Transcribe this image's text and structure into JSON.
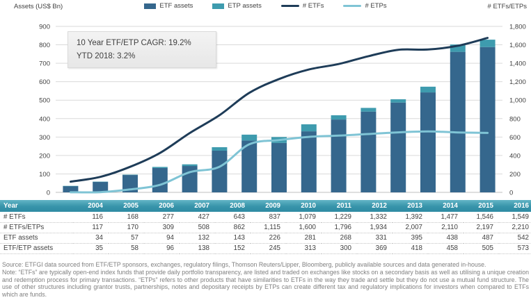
{
  "header": {
    "left_axis_title": "Assets (US$ Bn)",
    "right_axis_title": "# ETFs/ETPs",
    "legend": [
      {
        "label": "ETF assets",
        "type": "swatch",
        "color": "#35678D"
      },
      {
        "label": "ETP assets",
        "type": "swatch",
        "color": "#3E9BAE"
      },
      {
        "label": "# ETFs",
        "type": "line",
        "color": "#1E3C58"
      },
      {
        "label": "# ETPs",
        "type": "line",
        "color": "#7FC4D5"
      }
    ]
  },
  "annotation": {
    "line1": "10 Year ETF/ETP CAGR: 19.2%",
    "line2": "YTD 2018: 3.2%"
  },
  "chart_data": {
    "type": "combo",
    "title": "",
    "categories": [
      "2004",
      "2005",
      "2006",
      "2007",
      "2008",
      "2009",
      "2010",
      "2011",
      "2012",
      "2013",
      "2014",
      "2015",
      "2016",
      "2017",
      "Jul-18"
    ],
    "series": [
      {
        "name": "ETF assets",
        "type": "bar",
        "axis": "left",
        "stacked": true,
        "color": "#35678D",
        "values": [
          34,
          57,
          94,
          132,
          143,
          226,
          281,
          268,
          331,
          395,
          438,
          487,
          542,
          762,
          788
        ]
      },
      {
        "name": "ETP assets",
        "type": "bar",
        "axis": "left",
        "stacked": true,
        "color": "#3E9BAE",
        "values": [
          1,
          1,
          2,
          6,
          9,
          19,
          32,
          32,
          38,
          23,
          20,
          18,
          31,
          40,
          40
        ]
      },
      {
        "name": "# ETFs",
        "type": "line",
        "axis": "right",
        "color": "#1E3C58",
        "values": [
          116,
          168,
          277,
          427,
          643,
          837,
          1079,
          1229,
          1332,
          1392,
          1477,
          1546,
          1549,
          1590,
          1675
        ]
      },
      {
        "name": "# ETPs",
        "type": "line",
        "axis": "right",
        "color": "#7FC4D5",
        "values": [
          1,
          2,
          32,
          81,
          219,
          278,
          521,
          567,
          602,
          615,
          633,
          651,
          661,
          650,
          645
        ]
      }
    ],
    "left_axis": {
      "label": "Assets (US$ Bn)",
      "min": 0,
      "max": 900,
      "step": 100,
      "ticks": [
        "0",
        "100",
        "200",
        "300",
        "400",
        "500",
        "600",
        "700",
        "800",
        "900"
      ]
    },
    "right_axis": {
      "label": "# ETFs/ETPs",
      "min": 0,
      "max": 1800,
      "step": 200,
      "ticks": [
        "0",
        "200",
        "400",
        "600",
        "800",
        "1,000",
        "1,200",
        "1,400",
        "1,600",
        "1,800"
      ]
    },
    "grid": true,
    "legend_position": "top",
    "colors": {
      "gridline": "#d9d9d9",
      "baseline": "#bfbfbf",
      "tick_text": "#404040"
    }
  },
  "table": {
    "header": [
      "Year",
      "2004",
      "2005",
      "2006",
      "2007",
      "2008",
      "2009",
      "2010",
      "2011",
      "2012",
      "2013",
      "2014",
      "2015",
      "2016",
      "2017",
      "Jul-18"
    ],
    "rows": [
      {
        "label": "# ETFs",
        "values": [
          "116",
          "168",
          "277",
          "427",
          "643",
          "837",
          "1,079",
          "1,229",
          "1,332",
          "1,392",
          "1,477",
          "1,546",
          "1,549",
          "1,590",
          "1,675"
        ]
      },
      {
        "label": "# ETFs/ETPs",
        "values": [
          "117",
          "170",
          "309",
          "508",
          "862",
          "1,115",
          "1,600",
          "1,796",
          "1,934",
          "2,007",
          "2,110",
          "2,197",
          "2,210",
          "2,240",
          "2,320"
        ]
      },
      {
        "label": "ETF assets",
        "values": [
          "34",
          "57",
          "94",
          "132",
          "143",
          "226",
          "281",
          "268",
          "331",
          "395",
          "438",
          "487",
          "542",
          "762",
          "788"
        ]
      },
      {
        "label": "ETF/ETP assets",
        "values": [
          "35",
          "58",
          "96",
          "138",
          "152",
          "245",
          "313",
          "300",
          "369",
          "418",
          "458",
          "505",
          "573",
          "802",
          "828"
        ]
      }
    ]
  },
  "footnote": {
    "source": "Source: ETFGI data sourced from ETF/ETP sponsors, exchanges, regulatory filings, Thomson Reuters/Lipper, Bloomberg, publicly available sources and data generated in-house.",
    "note": "Note: “ETFs” are typically open-end index funds that provide daily portfolio transparency, are listed and traded on exchanges like stocks on a secondary basis as well as utilising a unique creation and redemption process for primary transactions. “ETPs” refers to other products that have similarities to ETFs in the way they trade and settle but they do not use a mutual fund structure. The use of other structures including grantor trusts, partnerships, notes and depositary receipts by ETPs can create different tax and regulatory implications for investors when compared to ETFs which are funds."
  }
}
